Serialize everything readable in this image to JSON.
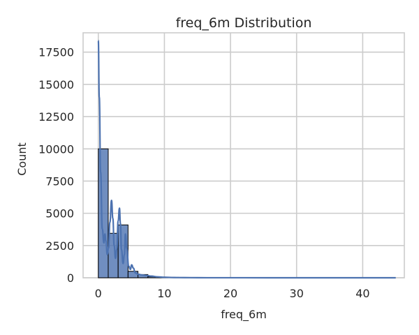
{
  "chart_data": {
    "type": "bar",
    "title": "freq_6m Distribution",
    "xlabel": "freq_6m",
    "ylabel": "Count",
    "xlim": [
      -2.3,
      46.3
    ],
    "ylim": [
      0,
      19000
    ],
    "xticks": [
      0,
      10,
      20,
      30,
      40
    ],
    "yticks": [
      0,
      2500,
      5000,
      7500,
      10000,
      12500,
      15000,
      17500
    ],
    "grid": true,
    "bar_color": "#4c72b0",
    "kde_color": "#4c72b0",
    "bins": [
      {
        "x0": 0.0,
        "x1": 1.5,
        "count": 10000
      },
      {
        "x0": 1.5,
        "x1": 3.0,
        "count": 3450
      },
      {
        "x0": 3.0,
        "x1": 4.5,
        "count": 4100
      },
      {
        "x0": 4.5,
        "x1": 6.0,
        "count": 500
      },
      {
        "x0": 6.0,
        "x1": 7.5,
        "count": 250
      },
      {
        "x0": 7.5,
        "x1": 9.0,
        "count": 80
      },
      {
        "x0": 9.0,
        "x1": 10.5,
        "count": 30
      },
      {
        "x0": 10.5,
        "x1": 12.0,
        "count": 15
      },
      {
        "x0": 12.0,
        "x1": 13.5,
        "count": 8
      },
      {
        "x0": 13.5,
        "x1": 15.0,
        "count": 4
      }
    ],
    "kde": {
      "x": [
        0,
        0.15,
        0.35,
        0.6,
        0.85,
        1.0,
        1.15,
        1.35,
        1.55,
        1.75,
        2.0,
        2.2,
        2.4,
        2.6,
        2.8,
        3.0,
        3.2,
        3.35,
        3.5,
        3.75,
        3.95,
        4.1,
        4.3,
        4.6,
        4.85,
        5.05,
        5.3,
        5.6,
        6.0,
        6.6,
        7.3,
        8.0,
        9.0,
        10.0,
        11.5,
        13.0,
        15.0,
        18.0,
        22.0,
        30.0,
        38.0,
        45.0
      ],
      "y": [
        18400,
        14000,
        8200,
        3800,
        2700,
        3400,
        2900,
        1800,
        2300,
        4300,
        6000,
        4600,
        2500,
        1500,
        2200,
        4400,
        5400,
        4200,
        2200,
        1100,
        1800,
        3400,
        2300,
        900,
        650,
        1000,
        750,
        380,
        280,
        220,
        180,
        130,
        70,
        40,
        20,
        12,
        6,
        3,
        2,
        1,
        1,
        0
      ]
    }
  }
}
